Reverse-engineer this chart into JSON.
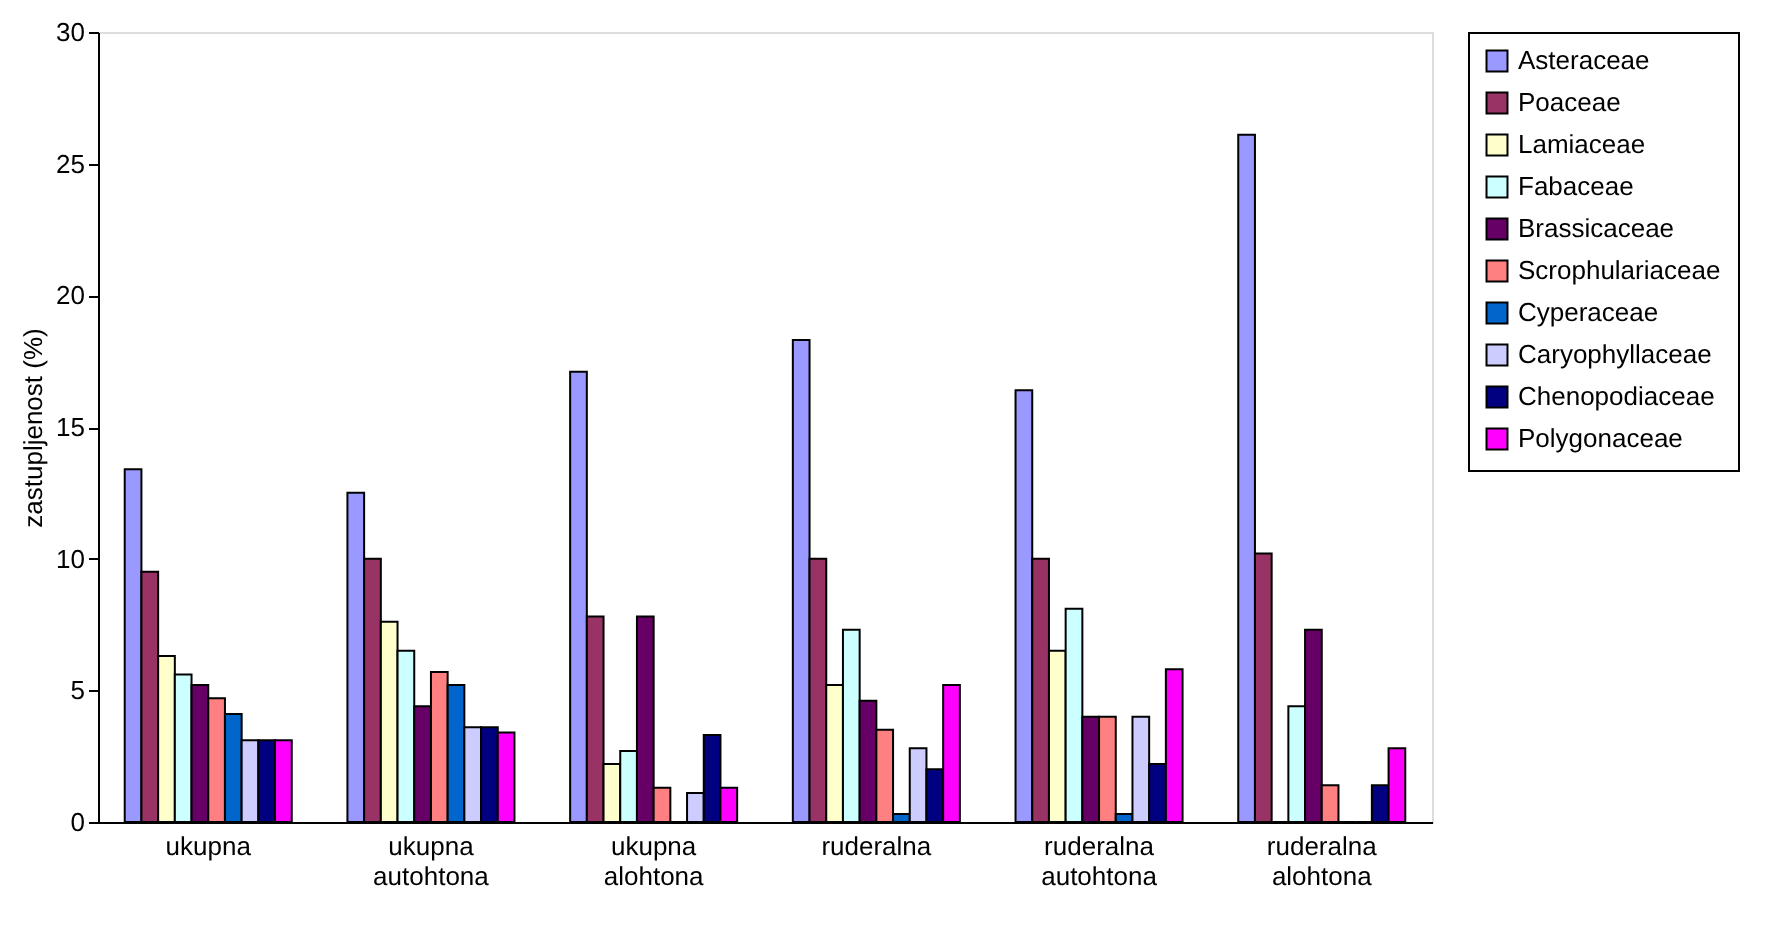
{
  "chart_data": {
    "type": "bar",
    "ylabel": "zastupljenost (%)",
    "categories": [
      "ukupna",
      "ukupna autohtona",
      "ukupna alohtona",
      "ruderalna",
      "ruderalna autohtona",
      "ruderalna alohtona"
    ],
    "series": [
      {
        "name": "Asteraceae",
        "color": "#9999ff",
        "values": [
          13.4,
          12.5,
          17.1,
          18.3,
          16.4,
          26.1
        ]
      },
      {
        "name": "Poaceae",
        "color": "#993366",
        "values": [
          9.5,
          10.0,
          7.8,
          10.0,
          10.0,
          10.2
        ]
      },
      {
        "name": "Lamiaceae",
        "color": "#ffffcc",
        "values": [
          6.3,
          7.6,
          2.2,
          5.2,
          6.5,
          0
        ]
      },
      {
        "name": "Fabaceae",
        "color": "#ccffff",
        "values": [
          5.6,
          6.5,
          2.7,
          7.3,
          8.1,
          4.4
        ]
      },
      {
        "name": "Brassicaceae",
        "color": "#660066",
        "values": [
          5.2,
          4.4,
          7.8,
          4.6,
          4.0,
          7.3
        ]
      },
      {
        "name": "Scrophulariaceae",
        "color": "#ff8080",
        "values": [
          4.7,
          5.7,
          1.3,
          3.5,
          4.0,
          1.4
        ]
      },
      {
        "name": "Cyperaceae",
        "color": "#0066cc",
        "values": [
          4.1,
          5.2,
          0,
          0.3,
          0.3,
          0
        ]
      },
      {
        "name": "Caryophyllaceae",
        "color": "#ccccff",
        "values": [
          3.1,
          3.6,
          1.1,
          2.8,
          4.0,
          0
        ]
      },
      {
        "name": "Chenopodiaceae",
        "color": "#000080",
        "values": [
          3.1,
          3.6,
          3.3,
          2.0,
          2.2,
          1.4
        ]
      },
      {
        "name": "Polygonaceae",
        "color": "#ff00ff",
        "values": [
          3.1,
          3.4,
          1.3,
          5.2,
          5.8,
          2.8
        ]
      }
    ],
    "ylim": [
      0,
      30
    ],
    "yticks": [
      0,
      5,
      10,
      15,
      20,
      25,
      30
    ],
    "grid": false,
    "legend": "right"
  }
}
